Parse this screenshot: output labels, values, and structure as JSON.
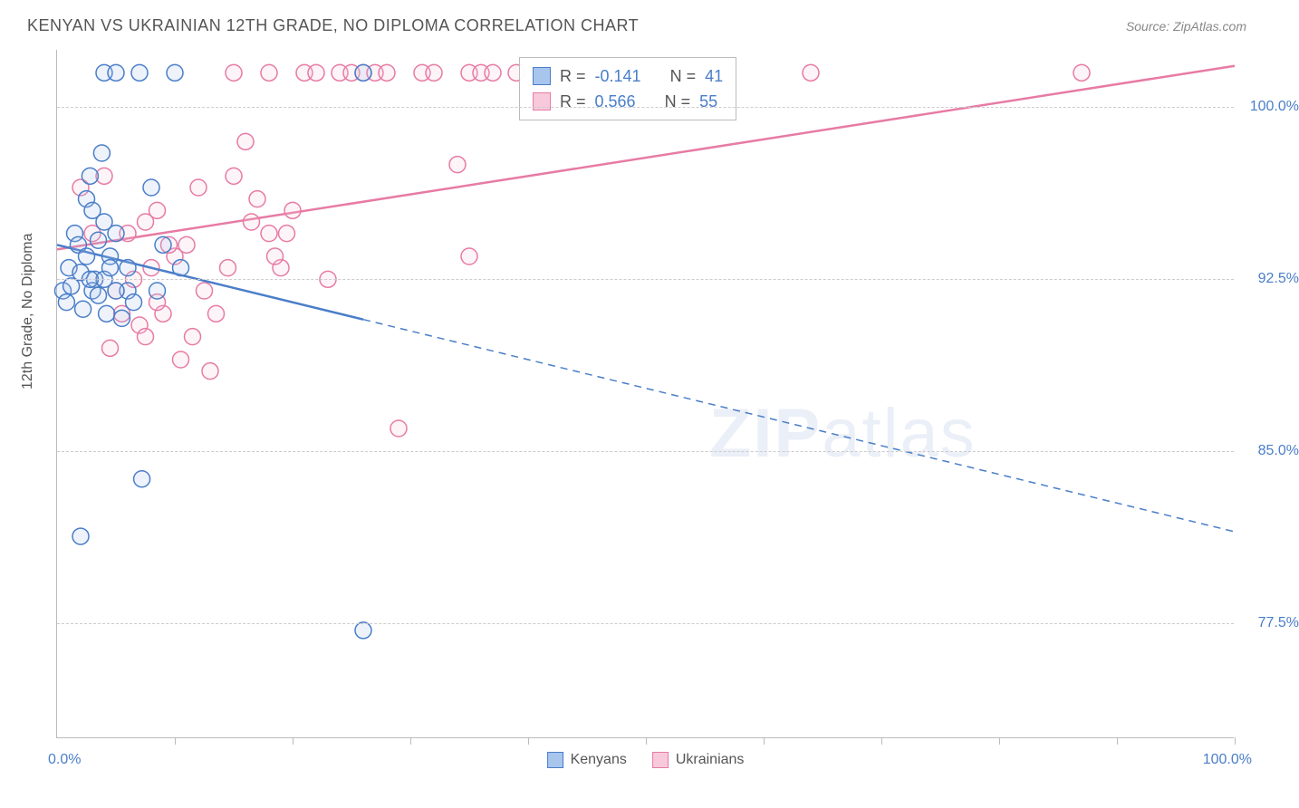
{
  "header": {
    "title": "KENYAN VS UKRAINIAN 12TH GRADE, NO DIPLOMA CORRELATION CHART",
    "source": "Source: ZipAtlas.com"
  },
  "watermark": {
    "zip": "ZIP",
    "atlas": "atlas"
  },
  "chart": {
    "type": "scatter-with-regression",
    "ylabel": "12th Grade, No Diploma",
    "xlim": [
      0,
      100
    ],
    "ylim": [
      72.5,
      102.5
    ],
    "xticks": [
      0,
      10,
      20,
      30,
      40,
      50,
      60,
      70,
      80,
      90,
      100
    ],
    "yticks": [
      77.5,
      85.0,
      92.5,
      100.0
    ],
    "ytick_labels": [
      "77.5%",
      "85.0%",
      "92.5%",
      "100.0%"
    ],
    "x_min_label": "0.0%",
    "x_max_label": "100.0%",
    "background_color": "#ffffff",
    "grid_color": "#cccccc",
    "axis_color": "#bbbbbb",
    "label_color": "#555555",
    "tick_label_color": "#4a7ec9",
    "marker_radius": 9,
    "marker_stroke_width": 1.5,
    "marker_fill_opacity": 0.2,
    "line_width": 2.5,
    "series": {
      "kenyans": {
        "label": "Kenyans",
        "color_stroke": "#4a7ec9",
        "color_fill": "#a8c5ed",
        "R": "-0.141",
        "N": "41",
        "regression": {
          "x0": 0,
          "y0": 94.0,
          "solid_until_x": 26,
          "x1": 100,
          "y1": 81.5
        },
        "points": [
          [
            0.5,
            92.0
          ],
          [
            0.8,
            91.5
          ],
          [
            1.0,
            93.0
          ],
          [
            1.2,
            92.2
          ],
          [
            1.5,
            94.5
          ],
          [
            1.8,
            94.0
          ],
          [
            2.0,
            92.8
          ],
          [
            2.2,
            91.2
          ],
          [
            2.5,
            96.0
          ],
          [
            2.8,
            97.0
          ],
          [
            3.0,
            95.5
          ],
          [
            3.2,
            92.5
          ],
          [
            3.5,
            94.2
          ],
          [
            3.8,
            98.0
          ],
          [
            4.0,
            101.5
          ],
          [
            4.2,
            91.0
          ],
          [
            4.5,
            93.5
          ],
          [
            5.0,
            101.5
          ],
          [
            5.5,
            90.8
          ],
          [
            6.0,
            92.0
          ],
          [
            6.5,
            91.5
          ],
          [
            7.0,
            101.5
          ],
          [
            7.2,
            83.8
          ],
          [
            8.0,
            96.5
          ],
          [
            8.5,
            92.0
          ],
          [
            9.0,
            94.0
          ],
          [
            10.0,
            101.5
          ],
          [
            10.5,
            93.0
          ],
          [
            2.0,
            81.3
          ],
          [
            4.0,
            92.5
          ],
          [
            5.0,
            92.0
          ],
          [
            6.0,
            93.0
          ],
          [
            5.0,
            94.5
          ],
          [
            3.0,
            92.0
          ],
          [
            2.5,
            93.5
          ],
          [
            4.0,
            95.0
          ],
          [
            26.0,
            101.5
          ],
          [
            26.0,
            77.2
          ],
          [
            4.5,
            93.0
          ],
          [
            3.5,
            91.8
          ],
          [
            2.8,
            92.5
          ]
        ]
      },
      "ukrainians": {
        "label": "Ukrainians",
        "color_stroke": "#e77ba4",
        "color_fill": "#f7c9db",
        "R": "0.566",
        "N": "55",
        "regression": {
          "x0": 0,
          "y0": 93.8,
          "solid_until_x": 100,
          "x1": 100,
          "y1": 101.8
        },
        "points": [
          [
            2.0,
            96.5
          ],
          [
            3.0,
            94.5
          ],
          [
            4.0,
            97.0
          ],
          [
            5.0,
            92.0
          ],
          [
            6.0,
            94.5
          ],
          [
            7.0,
            90.5
          ],
          [
            7.5,
            95.0
          ],
          [
            8.0,
            93.0
          ],
          [
            8.5,
            95.5
          ],
          [
            9.0,
            91.0
          ],
          [
            10.0,
            93.5
          ],
          [
            10.5,
            89.0
          ],
          [
            11.0,
            94.0
          ],
          [
            12.0,
            96.5
          ],
          [
            13.0,
            88.5
          ],
          [
            15.0,
            101.5
          ],
          [
            15.0,
            97.0
          ],
          [
            16.0,
            98.5
          ],
          [
            17.0,
            96.0
          ],
          [
            18.0,
            94.5
          ],
          [
            18.0,
            101.5
          ],
          [
            19.0,
            93.0
          ],
          [
            20.0,
            95.5
          ],
          [
            21.0,
            101.5
          ],
          [
            22.0,
            101.5
          ],
          [
            23.0,
            92.5
          ],
          [
            24.0,
            101.5
          ],
          [
            25.0,
            101.5
          ],
          [
            26.0,
            101.5
          ],
          [
            27.0,
            101.5
          ],
          [
            28.0,
            101.5
          ],
          [
            29.0,
            86.0
          ],
          [
            31.0,
            101.5
          ],
          [
            32.0,
            101.5
          ],
          [
            34.0,
            97.5
          ],
          [
            35.0,
            93.5
          ],
          [
            35.0,
            101.5
          ],
          [
            36.0,
            101.5
          ],
          [
            37.0,
            101.5
          ],
          [
            39.0,
            101.5
          ],
          [
            64.0,
            101.5
          ],
          [
            87.0,
            101.5
          ],
          [
            4.5,
            89.5
          ],
          [
            5.5,
            91.0
          ],
          [
            6.5,
            92.5
          ],
          [
            7.5,
            90.0
          ],
          [
            8.5,
            91.5
          ],
          [
            9.5,
            94.0
          ],
          [
            11.5,
            90.0
          ],
          [
            12.5,
            92.0
          ],
          [
            13.5,
            91.0
          ],
          [
            14.5,
            93.0
          ],
          [
            16.5,
            95.0
          ],
          [
            18.5,
            93.5
          ],
          [
            19.5,
            94.5
          ]
        ]
      }
    }
  },
  "correlation_box": {
    "rows": [
      {
        "swatch": "kenyans",
        "R_label": "R =",
        "N_label": "N ="
      },
      {
        "swatch": "ukrainians",
        "R_label": "R =",
        "N_label": "N ="
      }
    ]
  },
  "bottom_legend": {
    "items": [
      "kenyans",
      "ukrainians"
    ]
  }
}
